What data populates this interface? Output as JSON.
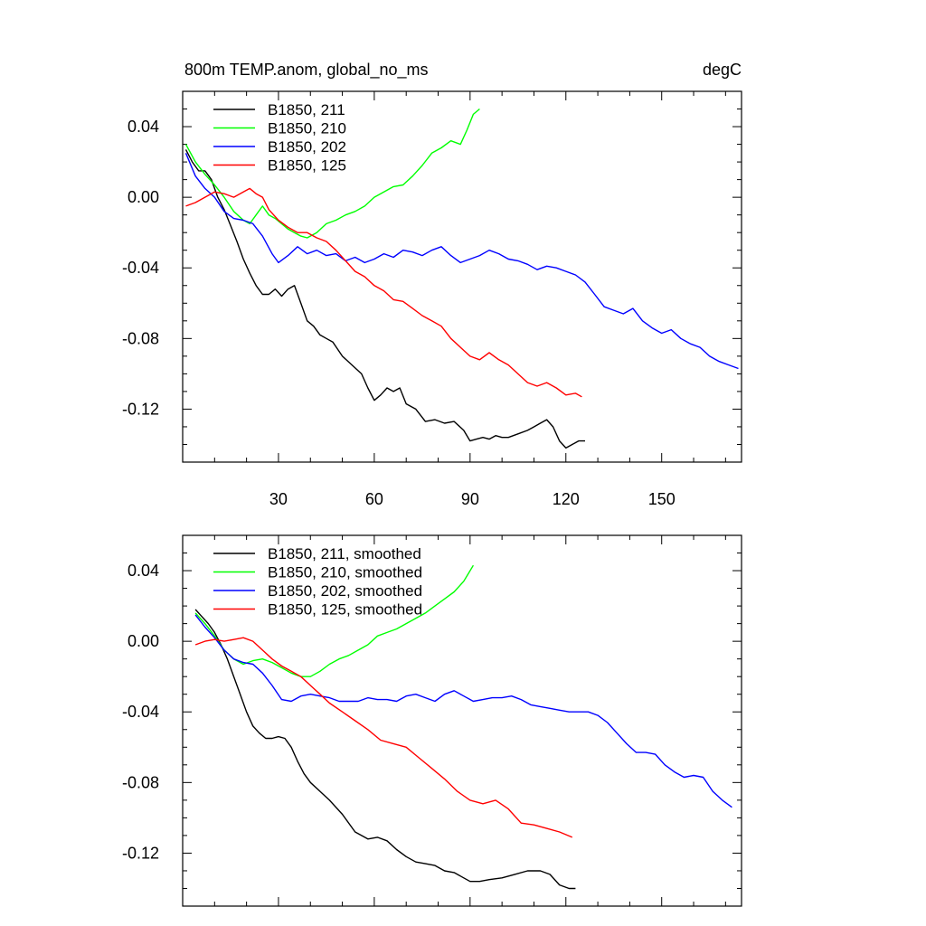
{
  "title_left": "800m TEMP.anom, global_no_ms",
  "title_right": "degC",
  "chart_data": [
    {
      "type": "line",
      "xlim": [
        0,
        175
      ],
      "ylim": [
        -0.15,
        0.06
      ],
      "xticks": [
        30,
        60,
        90,
        120,
        150
      ],
      "xticklabels": [
        "30",
        "60",
        "90",
        "120",
        "150"
      ],
      "yticks": [
        0.04,
        0.0,
        -0.04,
        -0.08,
        -0.12
      ],
      "yticklabels": [
        "0.04",
        "0.00",
        "-0.04",
        "-0.08",
        "-0.12"
      ],
      "legend_position": "top-left",
      "series": [
        {
          "name": "B1850, 211",
          "color": "#000000",
          "x": [
            1,
            3,
            5,
            7,
            9,
            11,
            13,
            15,
            17,
            19,
            21,
            23,
            25,
            27,
            29,
            31,
            33,
            35,
            37,
            39,
            41,
            43,
            45,
            47,
            50,
            53,
            56,
            58,
            60,
            62,
            64,
            66,
            68,
            70,
            73,
            76,
            79,
            82,
            85,
            88,
            90,
            92,
            94,
            96,
            98,
            100,
            102,
            105,
            108,
            110,
            112,
            114,
            116,
            118,
            120,
            122,
            124,
            126
          ],
          "y": [
            0.027,
            0.02,
            0.015,
            0.015,
            0.01,
            0.0,
            -0.007,
            -0.016,
            -0.025,
            -0.035,
            -0.043,
            -0.05,
            -0.055,
            -0.055,
            -0.052,
            -0.056,
            -0.052,
            -0.05,
            -0.06,
            -0.07,
            -0.073,
            -0.078,
            -0.08,
            -0.082,
            -0.09,
            -0.095,
            -0.1,
            -0.108,
            -0.115,
            -0.112,
            -0.108,
            -0.11,
            -0.108,
            -0.117,
            -0.12,
            -0.127,
            -0.126,
            -0.128,
            -0.127,
            -0.132,
            -0.138,
            -0.137,
            -0.136,
            -0.137,
            -0.135,
            -0.136,
            -0.136,
            -0.134,
            -0.132,
            -0.13,
            -0.128,
            -0.126,
            -0.13,
            -0.138,
            -0.142,
            -0.14,
            -0.138,
            -0.138
          ]
        },
        {
          "name": "B1850, 210",
          "color": "#00ff00",
          "x": [
            1,
            4,
            7,
            10,
            13,
            16,
            19,
            21,
            23,
            25,
            27,
            29,
            31,
            33,
            35,
            37,
            39,
            42,
            45,
            48,
            51,
            54,
            57,
            60,
            63,
            66,
            69,
            72,
            75,
            78,
            81,
            84,
            87,
            89,
            91,
            93
          ],
          "y": [
            0.03,
            0.02,
            0.013,
            0.007,
            0.0,
            -0.008,
            -0.013,
            -0.015,
            -0.01,
            -0.005,
            -0.01,
            -0.012,
            -0.015,
            -0.018,
            -0.02,
            -0.022,
            -0.023,
            -0.02,
            -0.015,
            -0.013,
            -0.01,
            -0.008,
            -0.005,
            0.0,
            0.003,
            0.006,
            0.007,
            0.012,
            0.018,
            0.025,
            0.028,
            0.032,
            0.03,
            0.038,
            0.047,
            0.05
          ]
        },
        {
          "name": "B1850, 202",
          "color": "#0000ff",
          "x": [
            1,
            4,
            7,
            10,
            13,
            16,
            19,
            22,
            25,
            28,
            30,
            33,
            36,
            39,
            42,
            45,
            48,
            51,
            54,
            57,
            60,
            63,
            66,
            69,
            72,
            75,
            78,
            81,
            84,
            87,
            90,
            93,
            96,
            99,
            102,
            105,
            108,
            111,
            114,
            117,
            120,
            123,
            126,
            129,
            132,
            135,
            138,
            141,
            144,
            147,
            150,
            153,
            156,
            159,
            162,
            165,
            168,
            171,
            174
          ],
          "y": [
            0.025,
            0.012,
            0.005,
            0.0,
            -0.008,
            -0.012,
            -0.013,
            -0.015,
            -0.022,
            -0.032,
            -0.037,
            -0.033,
            -0.028,
            -0.032,
            -0.03,
            -0.033,
            -0.032,
            -0.036,
            -0.034,
            -0.037,
            -0.035,
            -0.032,
            -0.034,
            -0.03,
            -0.031,
            -0.033,
            -0.03,
            -0.028,
            -0.033,
            -0.037,
            -0.035,
            -0.033,
            -0.03,
            -0.032,
            -0.035,
            -0.036,
            -0.038,
            -0.041,
            -0.039,
            -0.04,
            -0.042,
            -0.044,
            -0.048,
            -0.055,
            -0.062,
            -0.064,
            -0.066,
            -0.063,
            -0.07,
            -0.074,
            -0.077,
            -0.075,
            -0.08,
            -0.083,
            -0.085,
            -0.09,
            -0.093,
            -0.095,
            -0.097
          ]
        },
        {
          "name": "B1850, 125",
          "color": "#ff0000",
          "x": [
            1,
            4,
            7,
            10,
            13,
            16,
            19,
            21,
            23,
            25,
            27,
            30,
            33,
            36,
            39,
            42,
            45,
            48,
            51,
            54,
            57,
            60,
            63,
            66,
            69,
            72,
            75,
            78,
            81,
            84,
            87,
            90,
            93,
            96,
            99,
            102,
            105,
            108,
            111,
            114,
            117,
            120,
            123,
            125
          ],
          "y": [
            -0.005,
            -0.003,
            0.0,
            0.003,
            0.002,
            0.0,
            0.003,
            0.005,
            0.002,
            0.0,
            -0.007,
            -0.013,
            -0.017,
            -0.02,
            -0.02,
            -0.023,
            -0.025,
            -0.03,
            -0.036,
            -0.042,
            -0.045,
            -0.05,
            -0.053,
            -0.058,
            -0.059,
            -0.063,
            -0.067,
            -0.07,
            -0.073,
            -0.08,
            -0.085,
            -0.09,
            -0.092,
            -0.088,
            -0.092,
            -0.095,
            -0.1,
            -0.105,
            -0.107,
            -0.105,
            -0.108,
            -0.112,
            -0.111,
            -0.113
          ]
        }
      ]
    },
    {
      "type": "line",
      "xlim": [
        0,
        175
      ],
      "ylim": [
        -0.15,
        0.06
      ],
      "xticks": [
        30,
        60,
        90,
        120,
        150
      ],
      "yticks": [
        0.04,
        0.0,
        -0.04,
        -0.08,
        -0.12
      ],
      "yticklabels": [
        "0.04",
        "0.00",
        "-0.04",
        "-0.08",
        "-0.12"
      ],
      "legend_position": "top-left",
      "series": [
        {
          "name": "B1850, 211, smoothed",
          "color": "#000000",
          "x": [
            4,
            6,
            8,
            10,
            12,
            14,
            16,
            18,
            20,
            22,
            24,
            26,
            28,
            30,
            32,
            34,
            36,
            38,
            40,
            43,
            46,
            50,
            54,
            58,
            61,
            64,
            67,
            70,
            73,
            76,
            79,
            82,
            85,
            88,
            90,
            93,
            96,
            100,
            104,
            108,
            112,
            115,
            118,
            121,
            123
          ],
          "y": [
            0.018,
            0.014,
            0.01,
            0.005,
            -0.002,
            -0.01,
            -0.02,
            -0.03,
            -0.04,
            -0.048,
            -0.052,
            -0.055,
            -0.055,
            -0.054,
            -0.055,
            -0.06,
            -0.068,
            -0.075,
            -0.08,
            -0.085,
            -0.09,
            -0.098,
            -0.108,
            -0.112,
            -0.111,
            -0.113,
            -0.118,
            -0.122,
            -0.125,
            -0.126,
            -0.127,
            -0.13,
            -0.131,
            -0.134,
            -0.136,
            -0.136,
            -0.135,
            -0.134,
            -0.132,
            -0.13,
            -0.13,
            -0.132,
            -0.138,
            -0.14,
            -0.14
          ]
        },
        {
          "name": "B1850, 210, smoothed",
          "color": "#00ff00",
          "x": [
            4,
            7,
            10,
            13,
            16,
            19,
            22,
            25,
            28,
            31,
            34,
            37,
            40,
            43,
            46,
            49,
            52,
            55,
            58,
            61,
            64,
            67,
            70,
            73,
            76,
            79,
            82,
            85,
            88,
            91
          ],
          "y": [
            0.016,
            0.01,
            0.003,
            -0.005,
            -0.01,
            -0.013,
            -0.011,
            -0.01,
            -0.012,
            -0.015,
            -0.018,
            -0.02,
            -0.02,
            -0.017,
            -0.013,
            -0.01,
            -0.008,
            -0.005,
            -0.002,
            0.003,
            0.005,
            0.007,
            0.01,
            0.013,
            0.016,
            0.02,
            0.024,
            0.028,
            0.034,
            0.043
          ]
        },
        {
          "name": "B1850, 202, smoothed",
          "color": "#0000ff",
          "x": [
            4,
            7,
            10,
            13,
            16,
            19,
            22,
            25,
            28,
            31,
            34,
            37,
            40,
            43,
            46,
            49,
            52,
            55,
            58,
            61,
            64,
            67,
            70,
            73,
            76,
            79,
            82,
            85,
            88,
            91,
            94,
            97,
            100,
            103,
            106,
            109,
            112,
            115,
            118,
            121,
            124,
            127,
            130,
            133,
            136,
            139,
            142,
            145,
            148,
            151,
            154,
            157,
            160,
            163,
            166,
            169,
            172
          ],
          "y": [
            0.015,
            0.008,
            0.002,
            -0.005,
            -0.01,
            -0.012,
            -0.013,
            -0.018,
            -0.025,
            -0.033,
            -0.034,
            -0.031,
            -0.03,
            -0.031,
            -0.032,
            -0.034,
            -0.034,
            -0.034,
            -0.032,
            -0.033,
            -0.033,
            -0.034,
            -0.031,
            -0.03,
            -0.032,
            -0.034,
            -0.03,
            -0.028,
            -0.031,
            -0.034,
            -0.033,
            -0.032,
            -0.032,
            -0.031,
            -0.033,
            -0.036,
            -0.037,
            -0.038,
            -0.039,
            -0.04,
            -0.04,
            -0.04,
            -0.042,
            -0.046,
            -0.052,
            -0.058,
            -0.063,
            -0.063,
            -0.064,
            -0.07,
            -0.074,
            -0.077,
            -0.076,
            -0.077,
            -0.085,
            -0.09,
            -0.094
          ]
        },
        {
          "name": "B1850, 125, smoothed",
          "color": "#ff0000",
          "x": [
            4,
            7,
            10,
            13,
            16,
            19,
            22,
            25,
            28,
            31,
            34,
            37,
            40,
            43,
            46,
            50,
            54,
            58,
            62,
            66,
            70,
            74,
            78,
            82,
            86,
            90,
            94,
            98,
            102,
            106,
            110,
            114,
            118,
            122
          ],
          "y": [
            -0.002,
            0.0,
            0.001,
            0.0,
            0.001,
            0.002,
            0.0,
            -0.005,
            -0.01,
            -0.014,
            -0.017,
            -0.02,
            -0.025,
            -0.03,
            -0.035,
            -0.04,
            -0.045,
            -0.05,
            -0.056,
            -0.058,
            -0.06,
            -0.066,
            -0.072,
            -0.078,
            -0.085,
            -0.09,
            -0.092,
            -0.09,
            -0.095,
            -0.103,
            -0.104,
            -0.106,
            -0.108,
            -0.111
          ]
        }
      ]
    }
  ]
}
